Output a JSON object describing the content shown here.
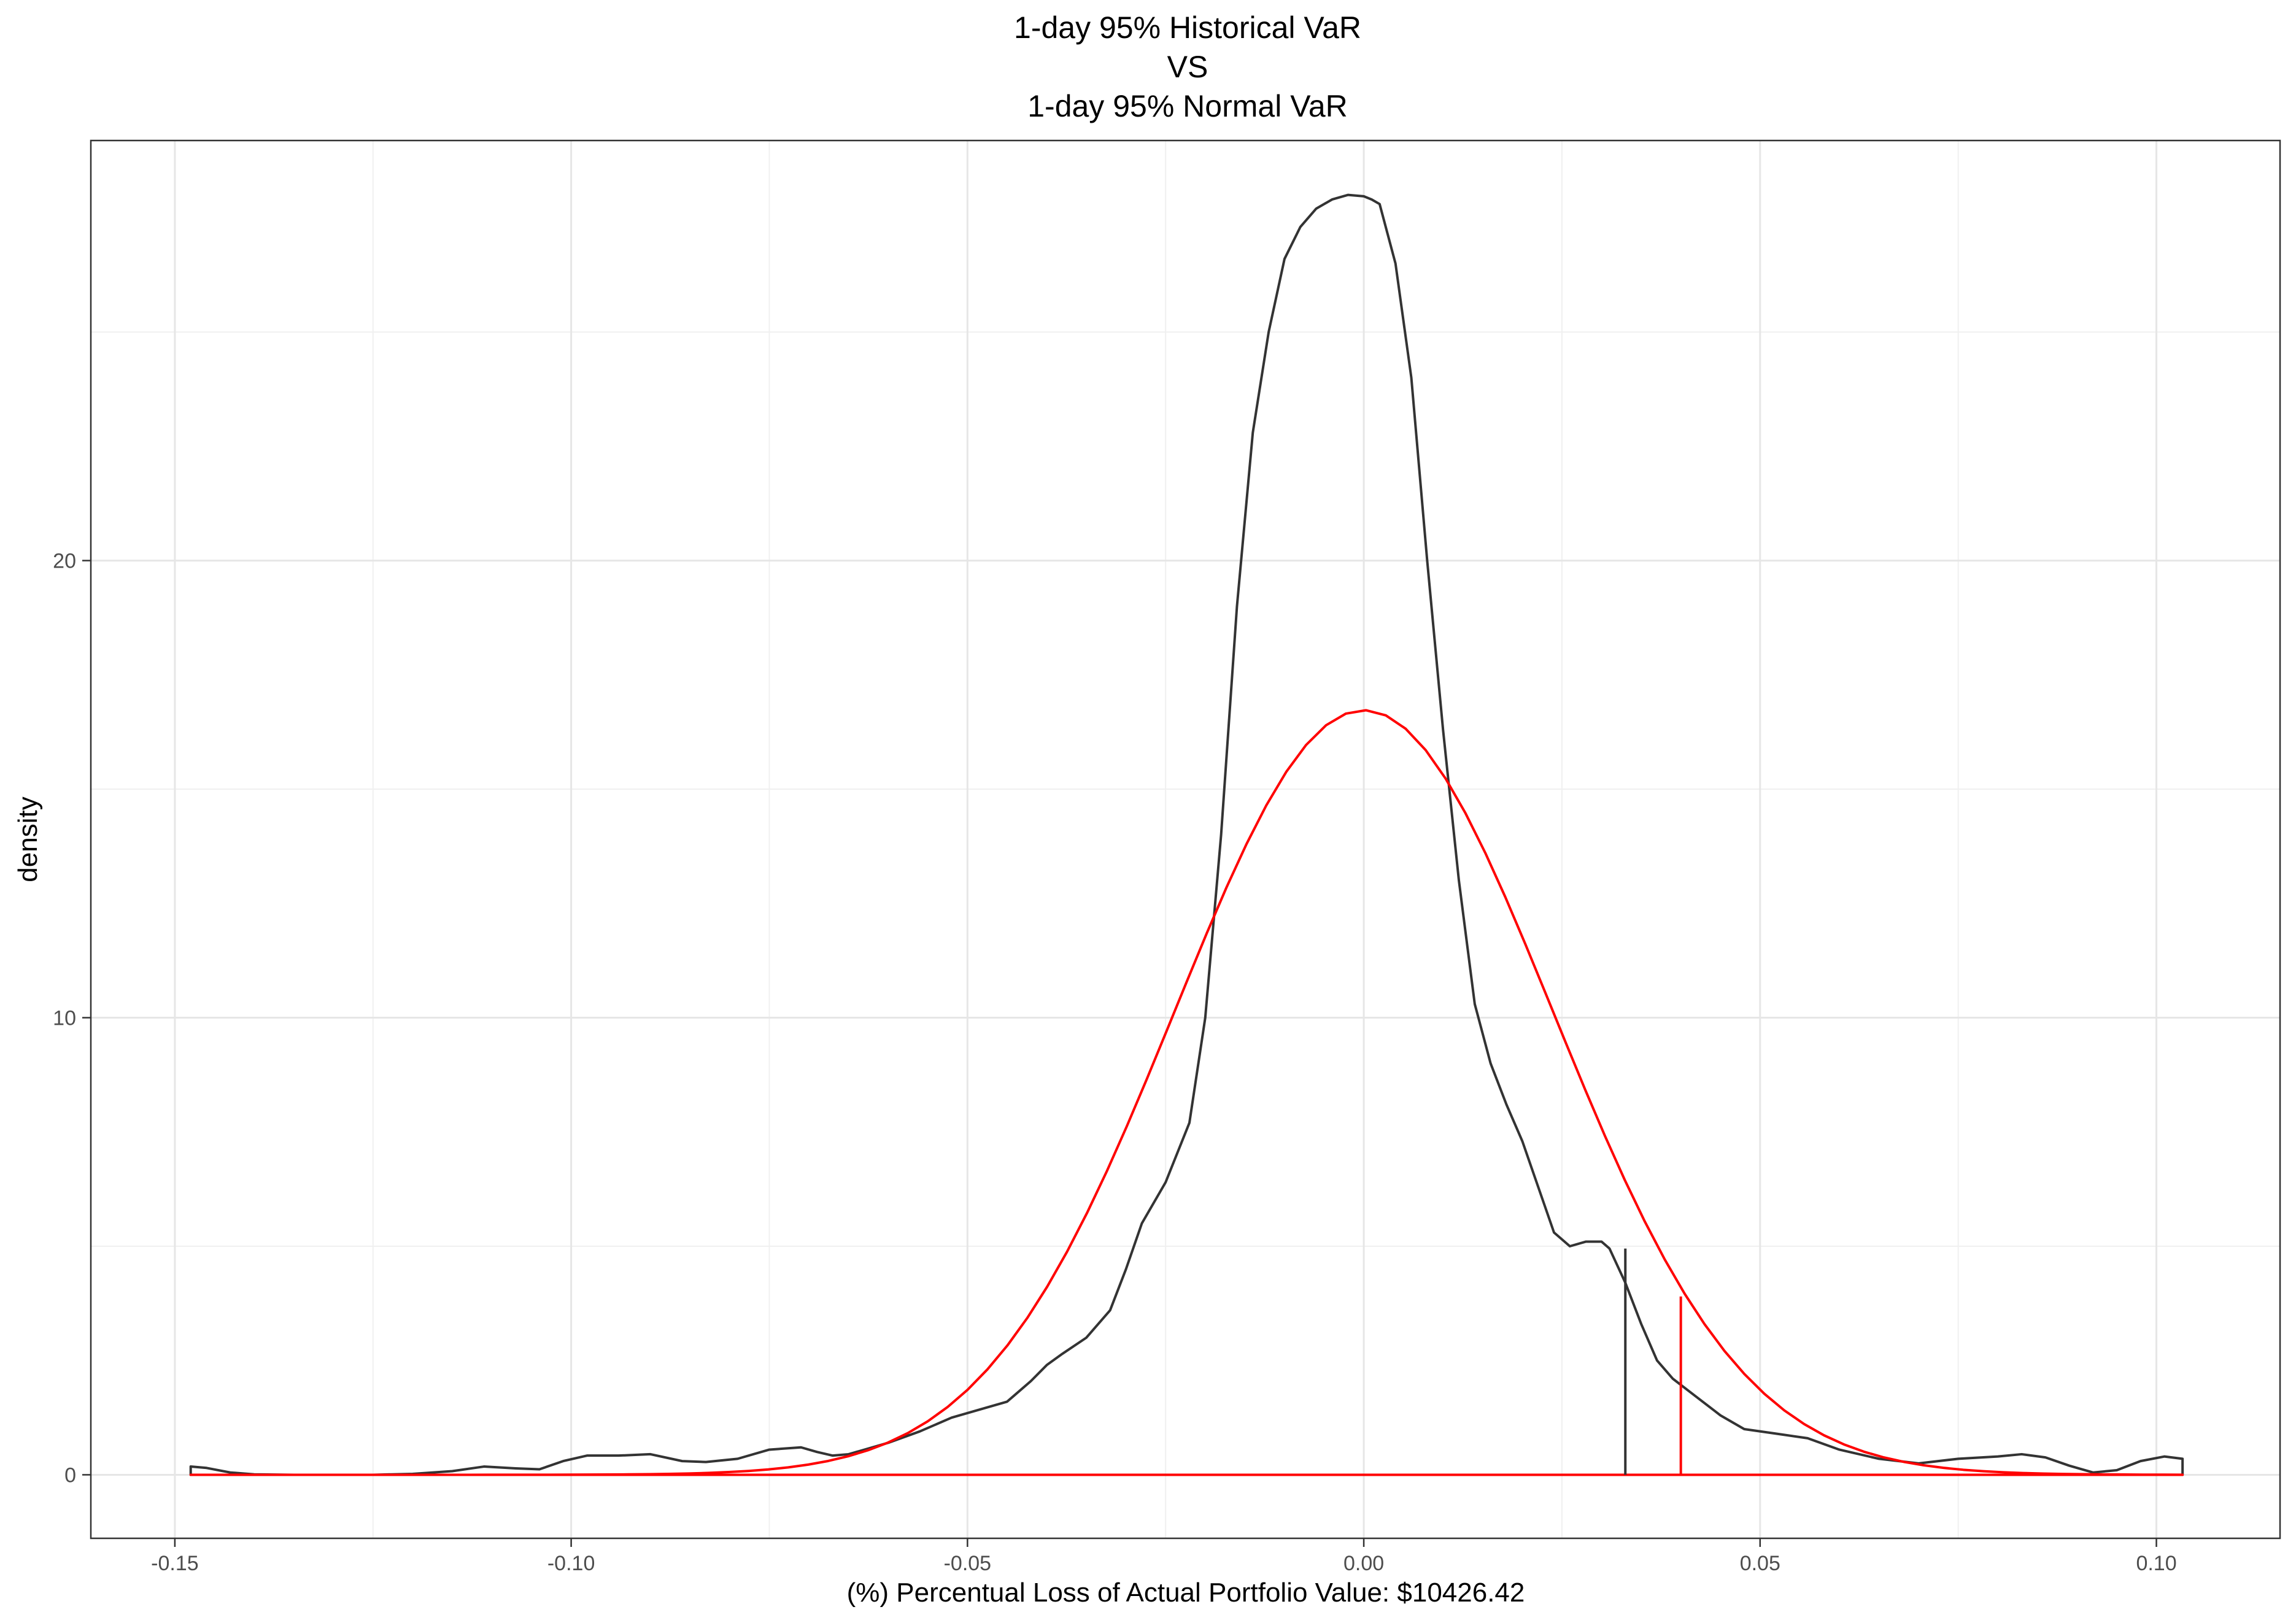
{
  "chart_data": {
    "type": "line",
    "title": [
      "1-day 95% Historical VaR",
      "VS",
      "1-day 95% Normal VaR"
    ],
    "xlabel": "(%) Percentual Loss of Actual Portfolio Value: $10426.42",
    "ylabel": "density",
    "xlim": [
      -0.1606,
      0.1156
    ],
    "ylim": [
      -1.39,
      29.19
    ],
    "x_ticks": [
      -0.15,
      -0.1,
      -0.05,
      0.0,
      0.05,
      0.1
    ],
    "x_tick_labels": [
      "-0.15",
      "-0.10",
      "-0.05",
      "0.00",
      "0.05",
      "0.10"
    ],
    "y_ticks": [
      0,
      10,
      20
    ],
    "y_tick_labels": [
      "0",
      "10",
      "20"
    ],
    "grid": true,
    "series": [
      {
        "color": "#333333",
        "kind": "empirical-density",
        "x": [
          -0.148,
          -0.146,
          -0.143,
          -0.14,
          -0.135,
          -0.125,
          -0.12,
          -0.115,
          -0.111,
          -0.107,
          -0.104,
          -0.101,
          -0.098,
          -0.094,
          -0.09,
          -0.086,
          -0.083,
          -0.079,
          -0.075,
          -0.071,
          -0.069,
          -0.067,
          -0.065,
          -0.06,
          -0.056,
          -0.052,
          -0.048,
          -0.045,
          -0.042,
          -0.04,
          -0.038,
          -0.035,
          -0.032,
          -0.03,
          -0.028,
          -0.025,
          -0.022,
          -0.02,
          -0.018,
          -0.016,
          -0.014,
          -0.012,
          -0.01,
          -0.008,
          -0.006,
          -0.004,
          -0.002,
          0.0,
          0.001,
          0.002,
          0.004,
          0.006,
          0.008,
          0.01,
          0.012,
          0.014,
          0.016,
          0.018,
          0.02,
          0.022,
          0.024,
          0.026,
          0.028,
          0.03,
          0.031,
          0.033,
          0.035,
          0.037,
          0.039,
          0.042,
          0.045,
          0.048,
          0.052,
          0.056,
          0.06,
          0.065,
          0.07,
          0.075,
          0.08,
          0.083,
          0.086,
          0.089,
          0.092,
          0.095,
          0.098,
          0.101,
          0.1033
        ],
        "y": [
          0.18,
          0.15,
          0.05,
          0.01,
          0.0,
          0.0,
          0.02,
          0.08,
          0.18,
          0.14,
          0.12,
          0.3,
          0.42,
          0.42,
          0.45,
          0.3,
          0.28,
          0.35,
          0.55,
          0.6,
          0.5,
          0.42,
          0.45,
          0.7,
          0.95,
          1.25,
          1.45,
          1.6,
          2.05,
          2.4,
          2.65,
          3.0,
          3.6,
          4.5,
          5.5,
          6.4,
          7.7,
          10.0,
          14.0,
          19.0,
          22.8,
          25.0,
          26.6,
          27.3,
          27.7,
          27.9,
          28.0,
          27.97,
          27.9,
          27.8,
          26.5,
          24.0,
          20.0,
          16.3,
          13.0,
          10.3,
          9.0,
          8.1,
          7.3,
          6.3,
          5.3,
          5.0,
          5.1,
          5.1,
          4.95,
          4.2,
          3.3,
          2.5,
          2.1,
          1.7,
          1.3,
          1.0,
          0.9,
          0.8,
          0.55,
          0.35,
          0.25,
          0.35,
          0.4,
          0.45,
          0.38,
          0.2,
          0.05,
          0.1,
          0.3,
          0.4,
          0.35
        ]
      },
      {
        "color": "#ff0000",
        "kind": "normal-density",
        "mean": 0.0,
        "sd": 0.02385,
        "x_range": [
          -0.148,
          0.1033
        ]
      }
    ],
    "var_lines": [
      {
        "color": "#333333",
        "x": 0.033,
        "y": 4.95
      },
      {
        "color": "#ff0000",
        "x": 0.04,
        "y": 3.9
      }
    ]
  }
}
